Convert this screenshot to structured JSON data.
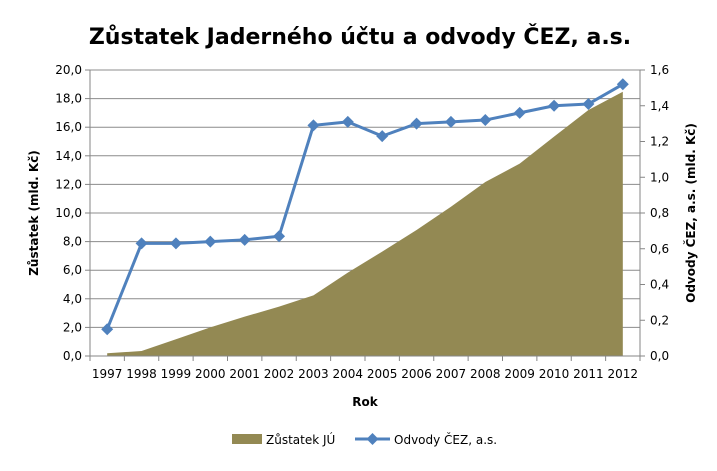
{
  "chart_data": {
    "type": "area+line",
    "title": "Zůstatek Jaderného účtu a odvody ČEZ, a.s.",
    "xlabel": "Rok",
    "ylabel": "Zůstatek (mld. Kč)",
    "y2label": "Odvody ČEZ, a.s. (mld. Kč)",
    "ylim": [
      0,
      20
    ],
    "y2lim": [
      0,
      1.6
    ],
    "yticks": [
      "0,0",
      "2,0",
      "4,0",
      "6,0",
      "8,0",
      "10,0",
      "12,0",
      "14,0",
      "16,0",
      "18,0",
      "20,0"
    ],
    "y2ticks": [
      "0,0",
      "0,2",
      "0,4",
      "0,6",
      "0,8",
      "1,0",
      "1,2",
      "1,4",
      "1,6"
    ],
    "grid": true,
    "legend_position": "bottom",
    "categories": [
      "1997",
      "1998",
      "1999",
      "2000",
      "2001",
      "2002",
      "2003",
      "2004",
      "2005",
      "2006",
      "2007",
      "2008",
      "2009",
      "2010",
      "2011",
      "2012"
    ],
    "series": [
      {
        "name": "Zůstatek JÚ",
        "type": "area",
        "axis": "left",
        "color": "#938953",
        "values": [
          0.19,
          0.35,
          1.17,
          2.0,
          2.75,
          3.45,
          4.24,
          5.83,
          7.3,
          8.81,
          10.44,
          12.17,
          13.45,
          15.34,
          17.2,
          18.48
        ]
      },
      {
        "name": "Odvody ČEZ, a.s.",
        "type": "line",
        "axis": "right",
        "color": "#4F81BD",
        "values": [
          0.15,
          0.63,
          0.63,
          0.64,
          0.65,
          0.67,
          1.29,
          1.31,
          1.23,
          1.3,
          1.31,
          1.32,
          1.36,
          1.4,
          1.41,
          1.52
        ]
      }
    ]
  }
}
